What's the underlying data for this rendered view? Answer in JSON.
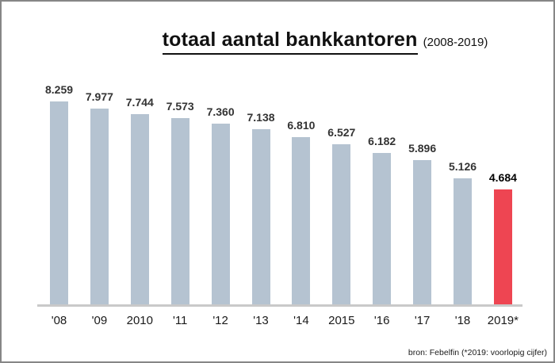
{
  "title": {
    "main": "totaal aantal bankkantoren",
    "suffix": "(2008-2019)"
  },
  "source_note": "bron: Febelfin (*2019: voorlopig cijfer)",
  "colors": {
    "bar": "#b5c3d1",
    "highlight": "#ee4552",
    "axis": "#c9c9c9",
    "frame_border": "#868686",
    "value_label": "#333333",
    "highlight_label": "#000000"
  },
  "chart_data": {
    "type": "bar",
    "title": "totaal aantal bankkantoren (2008-2019)",
    "categories": [
      "'08",
      "'09",
      "2010",
      "'11",
      "'12",
      "'13",
      "'14",
      "2015",
      "'16",
      "'17",
      "'18",
      "2019*"
    ],
    "values": [
      8259,
      7977,
      7744,
      7573,
      7360,
      7138,
      6810,
      6527,
      6182,
      5896,
      5126,
      4684
    ],
    "value_labels": [
      "8.259",
      "7.977",
      "7.744",
      "7.573",
      "7.360",
      "7.138",
      "6.810",
      "6.527",
      "6.182",
      "5.896",
      "5.126",
      "4.684"
    ],
    "highlight_index": 11,
    "xlabel": "",
    "ylabel": "",
    "ylim": [
      0,
      8800
    ],
    "grid": false,
    "legend": false,
    "value_labels_shown": true,
    "annotation": "*2019: voorlopig cijfer"
  }
}
